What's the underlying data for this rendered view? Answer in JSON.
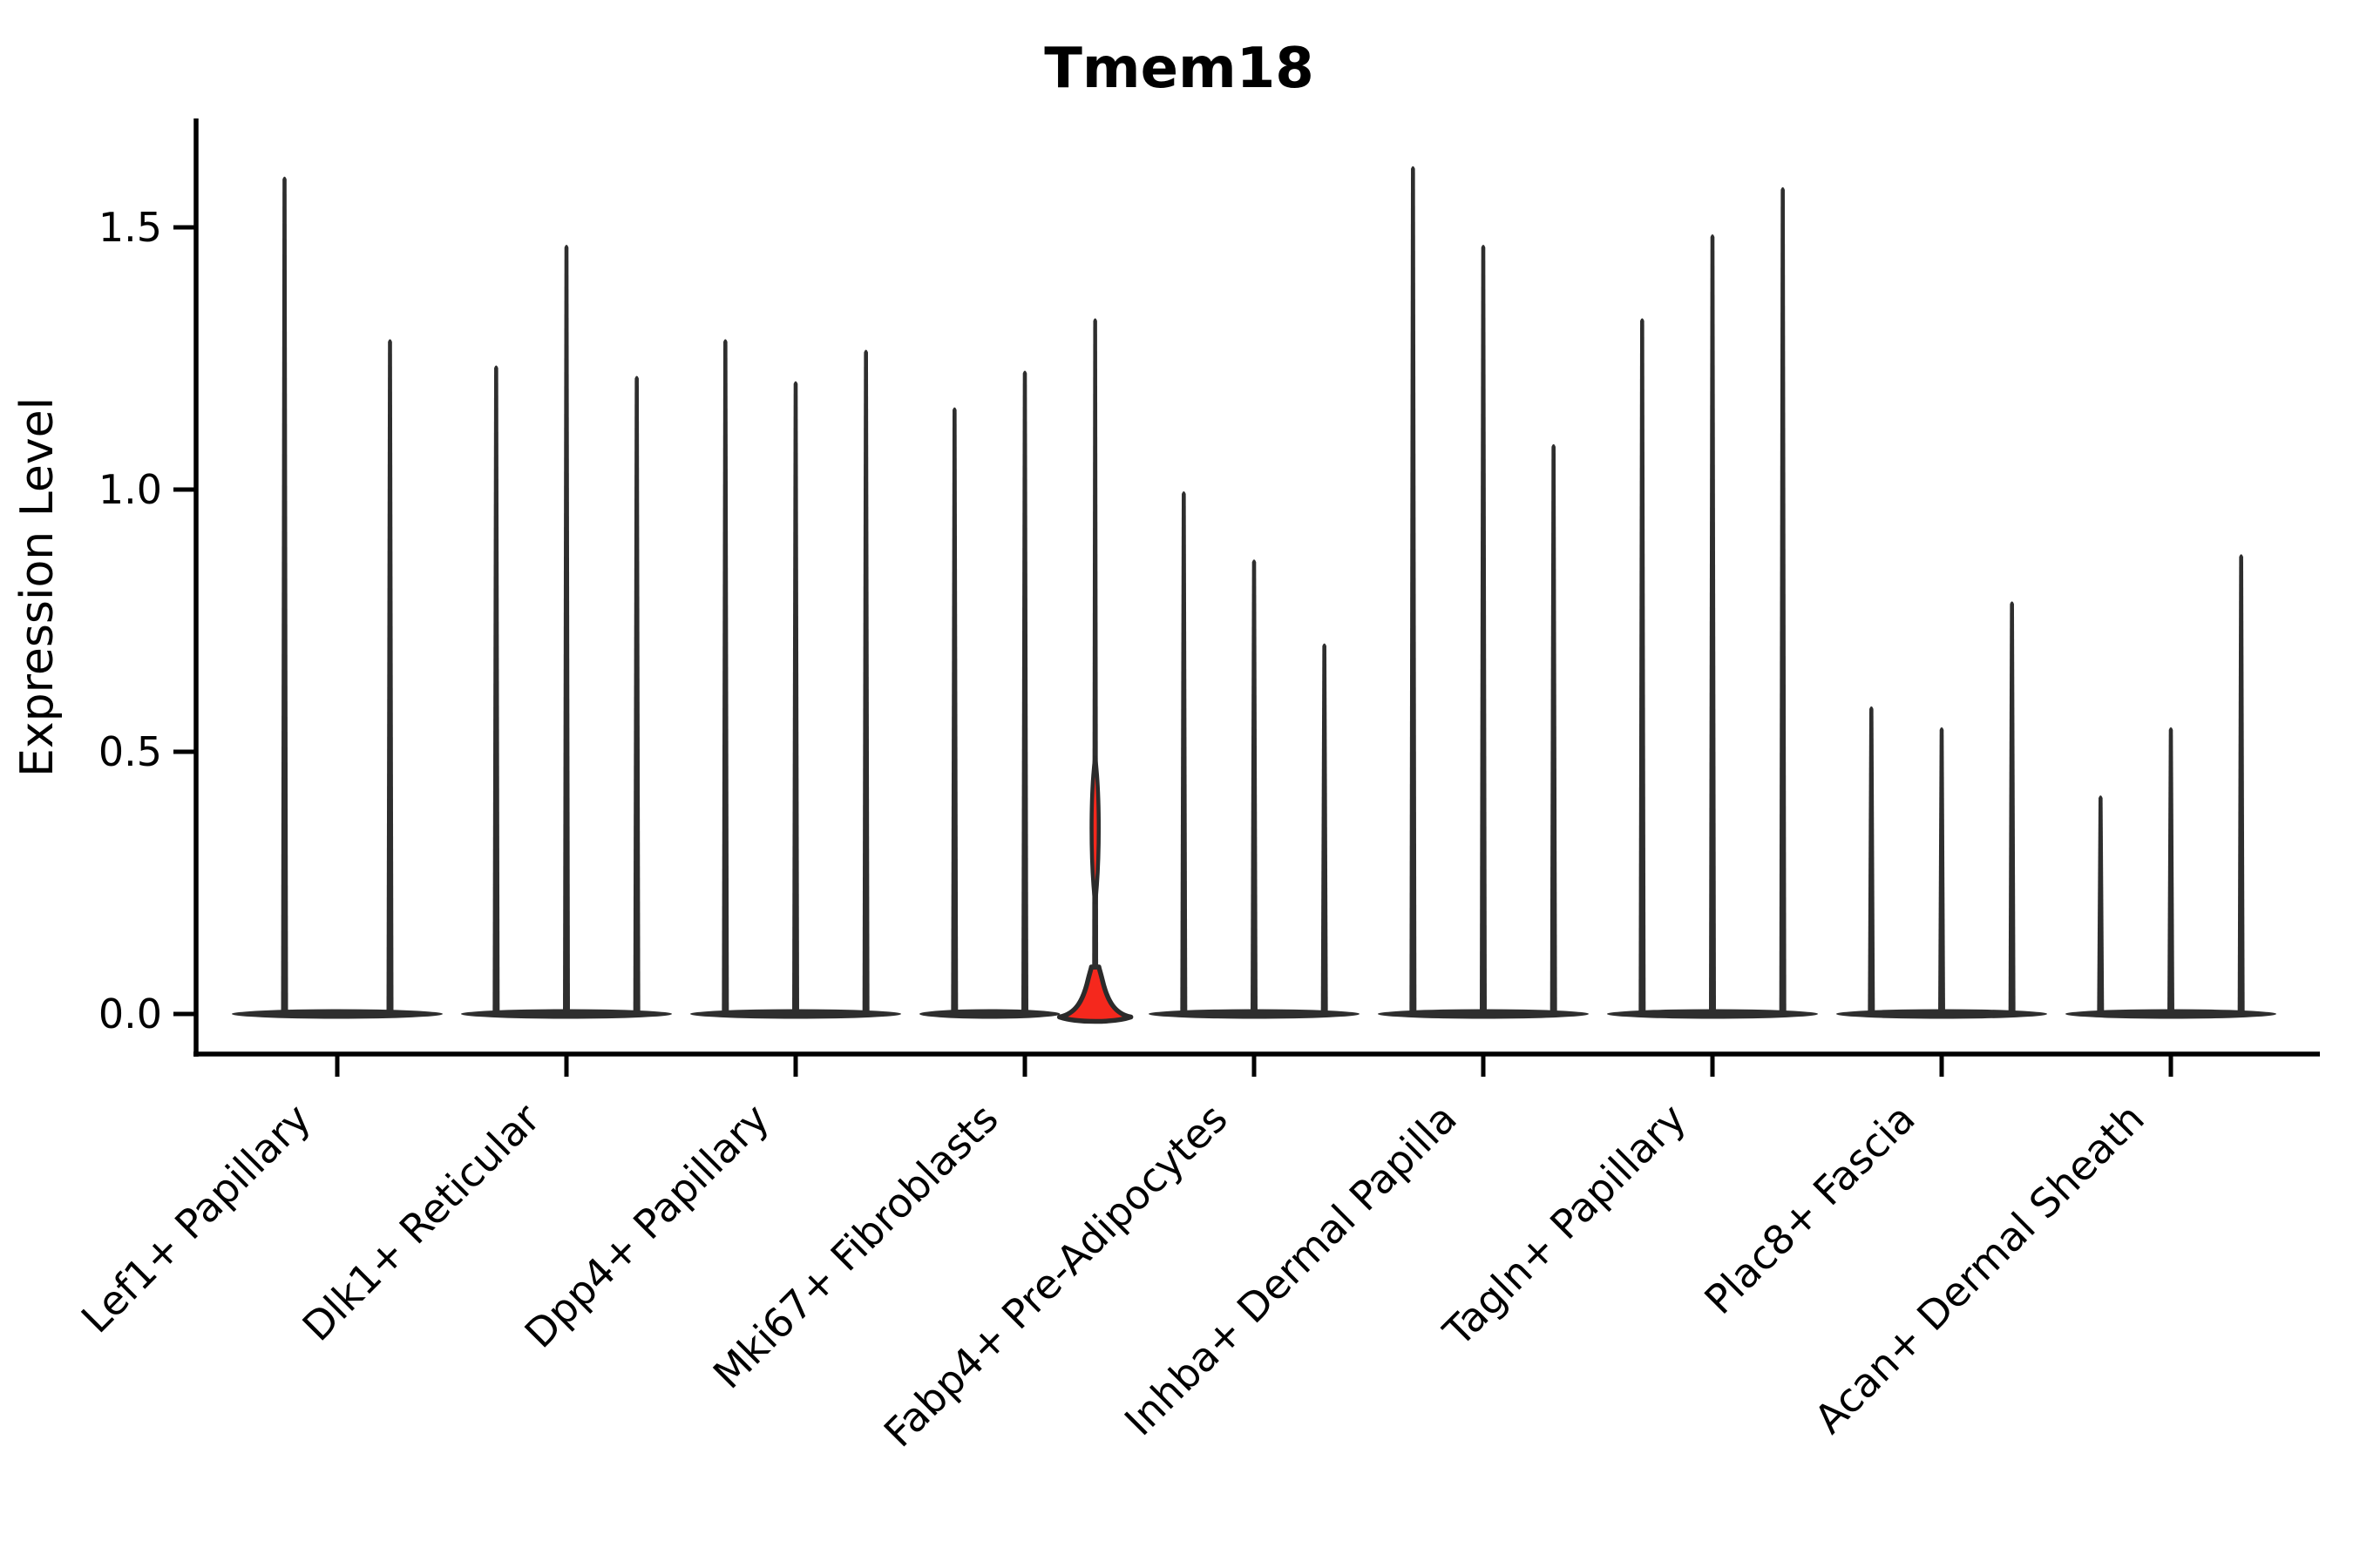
{
  "figure": {
    "title": "Tmem18",
    "y_axis_label": "Expression Level"
  },
  "chart_data": {
    "type": "violin",
    "title": "Tmem18",
    "ylabel": "Expression Level",
    "xlabel": "",
    "grid": false,
    "legend_position": "none",
    "ylim": [
      -0.08,
      1.71
    ],
    "ytick_labels": [
      "0.0",
      "0.5",
      "1.0",
      "1.5"
    ],
    "ytick_values": [
      0.0,
      0.5,
      1.0,
      1.5
    ],
    "categories": [
      "Lef1+ Papillary",
      "Dlk1+ Reticular",
      "Dpp4+ Papillary",
      "Mki67+ Fibroblasts",
      "Fabp4+ Pre-Adipocytes",
      "Inhba+ Dermal Papilla",
      "Tagln+ Papillary",
      "Plac8+ Fascia",
      "Acan+ Dermal Sheath"
    ],
    "description": "Violin plot of Tmem18 expression; each category contains 2-3 thin violins whose mass sits at 0 with a narrow spike to the max value; the third violin of Mki67+ Fibroblasts is highlighted red with a visible density bulge near 0 and a small lens-shaped bulge around 0.27-0.45.",
    "groups": [
      {
        "label": "Lef1+ Papillary",
        "violins": [
          {
            "max": 1.6
          },
          {
            "max": 1.29
          }
        ]
      },
      {
        "label": "Dlk1+ Reticular",
        "violins": [
          {
            "max": 1.24
          },
          {
            "max": 1.47
          },
          {
            "max": 1.22
          }
        ]
      },
      {
        "label": "Dpp4+ Papillary",
        "violins": [
          {
            "max": 1.29
          },
          {
            "max": 1.21
          },
          {
            "max": 1.27
          }
        ]
      },
      {
        "label": "Mki67+ Fibroblasts",
        "violins": [
          {
            "max": 1.16
          },
          {
            "max": 1.23
          },
          {
            "max": 1.33,
            "highlight": true
          }
        ]
      },
      {
        "label": "Fabp4+ Pre-Adipocytes",
        "violins": [
          {
            "max": 1.0
          },
          {
            "max": 0.87
          },
          {
            "max": 0.71
          }
        ]
      },
      {
        "label": "Inhba+ Dermal Papilla",
        "violins": [
          {
            "max": 1.62
          },
          {
            "max": 1.47
          },
          {
            "max": 1.09
          }
        ]
      },
      {
        "label": "Tagln+ Papillary",
        "violins": [
          {
            "max": 1.33
          },
          {
            "max": 1.49
          },
          {
            "max": 1.58
          }
        ]
      },
      {
        "label": "Plac8+ Fascia",
        "violins": [
          {
            "max": 0.59
          },
          {
            "max": 0.55
          },
          {
            "max": 0.79
          }
        ]
      },
      {
        "label": "Acan+ Dermal Sheath",
        "violins": [
          {
            "max": 0.42
          },
          {
            "max": 0.55
          },
          {
            "max": 0.88
          }
        ]
      }
    ],
    "highlight_violin": {
      "group": "Mki67+ Fibroblasts",
      "violin_index": 3,
      "max": 1.33,
      "base_bulge_top": 0.09,
      "lens_bulge_range": [
        0.27,
        0.45
      ]
    },
    "colors": {
      "violin": "#2e2e2e",
      "highlight_fill": "#f5281d",
      "outline": "#2b2b2b",
      "axis": "#000000",
      "background": "#ffffff"
    }
  }
}
